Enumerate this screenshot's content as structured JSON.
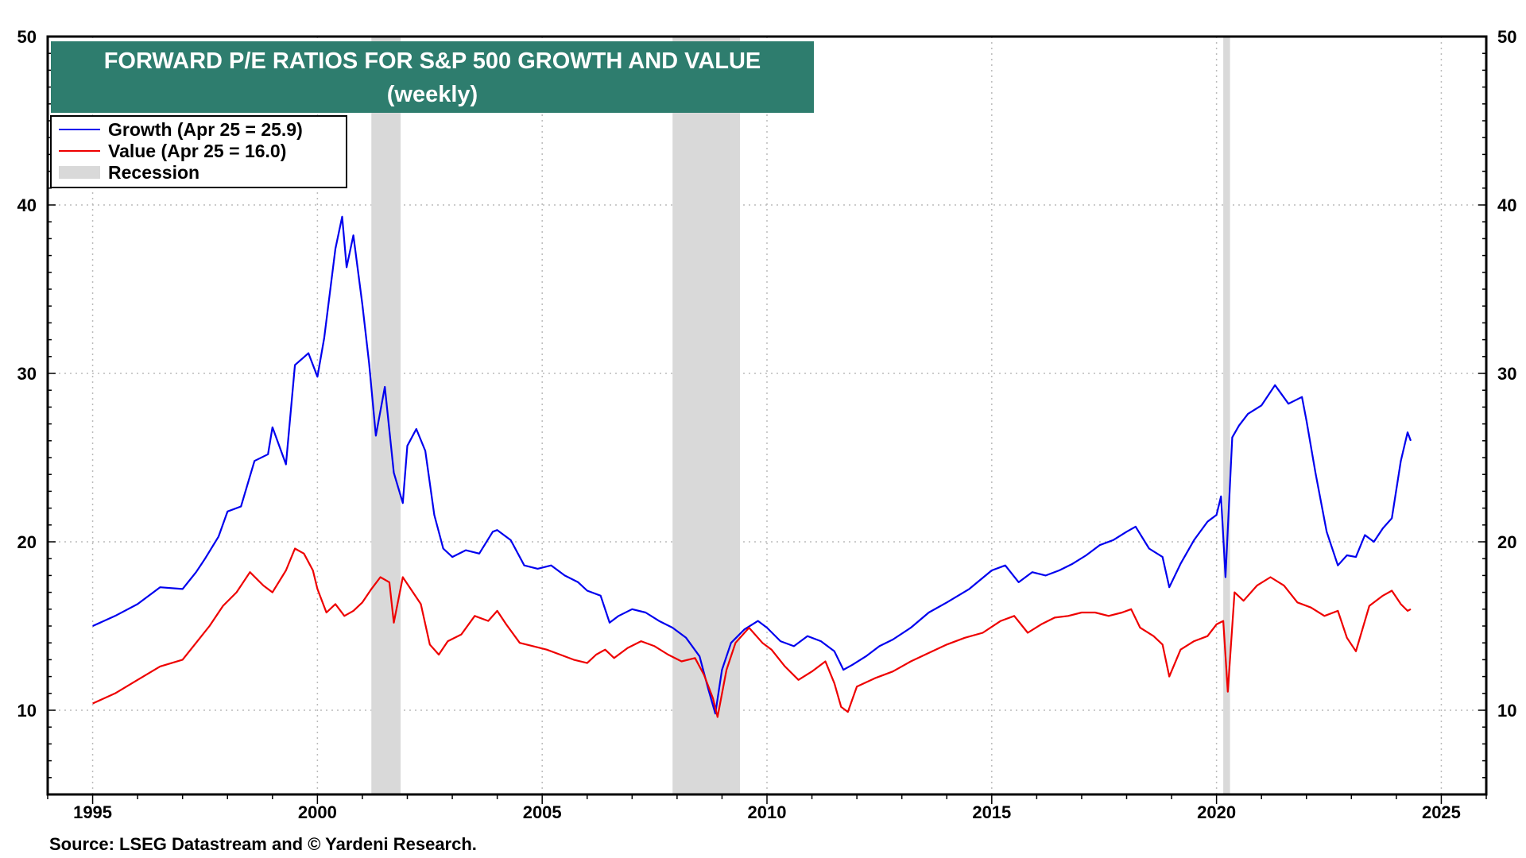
{
  "chart_data": {
    "type": "line",
    "title": "FORWARD P/E RATIOS FOR S&P 500 GROWTH AND VALUE",
    "subtitle": "(weekly)",
    "source": "Source: LSEG Datastream and © Yardeni Research.",
    "xlim": [
      1994.0,
      2026.0
    ],
    "ylim": [
      5,
      50
    ],
    "x_ticks": [
      1995,
      2000,
      2005,
      2010,
      2015,
      2020,
      2025
    ],
    "y_ticks": [
      10,
      20,
      30,
      40,
      50
    ],
    "grid": true,
    "legend_position": "top-left",
    "legend": [
      {
        "label": "Growth (Apr 25 = 25.9)",
        "color": "#0000ee",
        "kind": "line"
      },
      {
        "label": "Value (Apr 25 = 16.0)",
        "color": "#ee0000",
        "kind": "line"
      },
      {
        "label": "Recession",
        "color": "#d9d9d9",
        "kind": "patch"
      }
    ],
    "recessions": [
      [
        2001.2,
        2001.85
      ],
      [
        2007.9,
        2009.4
      ],
      [
        2020.15,
        2020.3
      ]
    ],
    "series": [
      {
        "name": "Growth (Apr 25 = 25.9)",
        "color": "#0000ee",
        "x": [
          1995.0,
          1995.5,
          1996.0,
          1996.5,
          1997.0,
          1997.3,
          1997.5,
          1997.8,
          1998.0,
          1998.3,
          1998.6,
          1998.9,
          1999.0,
          1999.3,
          1999.5,
          1999.8,
          2000.0,
          2000.15,
          2000.4,
          2000.55,
          2000.65,
          2000.8,
          2001.0,
          2001.15,
          2001.3,
          2001.5,
          2001.7,
          2001.9,
          2002.0,
          2002.2,
          2002.4,
          2002.6,
          2002.8,
          2003.0,
          2003.3,
          2003.6,
          2003.9,
          2004.0,
          2004.3,
          2004.6,
          2004.9,
          2005.2,
          2005.5,
          2005.8,
          2006.0,
          2006.3,
          2006.5,
          2006.7,
          2007.0,
          2007.3,
          2007.6,
          2007.9,
          2008.2,
          2008.5,
          2008.7,
          2008.85,
          2009.0,
          2009.2,
          2009.5,
          2009.8,
          2010.0,
          2010.3,
          2010.6,
          2010.9,
          2011.2,
          2011.5,
          2011.7,
          2011.9,
          2012.2,
          2012.5,
          2012.8,
          2013.2,
          2013.6,
          2014.0,
          2014.5,
          2015.0,
          2015.3,
          2015.6,
          2015.9,
          2016.2,
          2016.5,
          2016.8,
          2017.1,
          2017.4,
          2017.7,
          2018.0,
          2018.2,
          2018.5,
          2018.8,
          2018.95,
          2019.2,
          2019.5,
          2019.8,
          2020.0,
          2020.1,
          2020.2,
          2020.35,
          2020.5,
          2020.7,
          2021.0,
          2021.3,
          2021.6,
          2021.9,
          2022.0,
          2022.2,
          2022.45,
          2022.7,
          2022.9,
          2023.1,
          2023.3,
          2023.5,
          2023.7,
          2023.9,
          2024.1,
          2024.25,
          2024.32
        ],
        "y": [
          15.0,
          15.6,
          16.3,
          17.3,
          17.2,
          18.2,
          19.0,
          20.3,
          21.8,
          22.1,
          24.8,
          25.2,
          26.8,
          24.6,
          30.5,
          31.2,
          29.8,
          32.1,
          37.4,
          39.3,
          36.3,
          38.2,
          34.1,
          30.6,
          26.3,
          29.2,
          24.1,
          22.3,
          25.7,
          26.7,
          25.4,
          21.6,
          19.6,
          19.1,
          19.5,
          19.3,
          20.6,
          20.7,
          20.1,
          18.6,
          18.4,
          18.6,
          18.0,
          17.6,
          17.1,
          16.8,
          15.2,
          15.6,
          16.0,
          15.8,
          15.3,
          14.9,
          14.3,
          13.2,
          11.2,
          9.8,
          12.4,
          14.0,
          14.8,
          15.3,
          14.9,
          14.1,
          13.8,
          14.4,
          14.1,
          13.5,
          12.4,
          12.7,
          13.2,
          13.8,
          14.2,
          14.9,
          15.8,
          16.4,
          17.2,
          18.3,
          18.6,
          17.6,
          18.2,
          18.0,
          18.3,
          18.7,
          19.2,
          19.8,
          20.1,
          20.6,
          20.9,
          19.6,
          19.1,
          17.3,
          18.7,
          20.1,
          21.2,
          21.6,
          22.7,
          17.9,
          26.2,
          26.9,
          27.6,
          28.1,
          29.3,
          28.2,
          28.6,
          27.2,
          24.1,
          20.6,
          18.6,
          19.2,
          19.1,
          20.4,
          20.0,
          20.8,
          21.4,
          24.8,
          26.5,
          26.0
        ]
      },
      {
        "name": "Value (Apr 25 = 16.0)",
        "color": "#ee0000",
        "x": [
          1995.0,
          1995.5,
          1996.0,
          1996.5,
          1997.0,
          1997.3,
          1997.6,
          1997.9,
          1998.2,
          1998.5,
          1998.8,
          1999.0,
          1999.3,
          1999.5,
          1999.7,
          1999.9,
          2000.0,
          2000.2,
          2000.4,
          2000.6,
          2000.8,
          2001.0,
          2001.2,
          2001.4,
          2001.6,
          2001.7,
          2001.9,
          2002.1,
          2002.3,
          2002.5,
          2002.7,
          2002.9,
          2003.2,
          2003.5,
          2003.8,
          2004.0,
          2004.2,
          2004.5,
          2004.8,
          2005.1,
          2005.4,
          2005.7,
          2006.0,
          2006.2,
          2006.4,
          2006.6,
          2006.9,
          2007.2,
          2007.5,
          2007.8,
          2008.1,
          2008.4,
          2008.6,
          2008.8,
          2008.9,
          2009.1,
          2009.3,
          2009.6,
          2009.9,
          2010.1,
          2010.4,
          2010.7,
          2011.0,
          2011.3,
          2011.5,
          2011.65,
          2011.8,
          2012.0,
          2012.4,
          2012.8,
          2013.2,
          2013.6,
          2014.0,
          2014.4,
          2014.8,
          2015.2,
          2015.5,
          2015.8,
          2016.1,
          2016.4,
          2016.7,
          2017.0,
          2017.3,
          2017.6,
          2017.9,
          2018.1,
          2018.3,
          2018.6,
          2018.8,
          2018.95,
          2019.2,
          2019.5,
          2019.8,
          2020.0,
          2020.15,
          2020.25,
          2020.4,
          2020.6,
          2020.9,
          2021.2,
          2021.5,
          2021.8,
          2022.1,
          2022.4,
          2022.7,
          2022.9,
          2023.1,
          2023.4,
          2023.7,
          2023.9,
          2024.1,
          2024.25,
          2024.32
        ],
        "y": [
          10.4,
          11.0,
          11.8,
          12.6,
          13.0,
          14.0,
          15.0,
          16.2,
          17.0,
          18.2,
          17.4,
          17.0,
          18.3,
          19.6,
          19.3,
          18.3,
          17.2,
          15.8,
          16.3,
          15.6,
          15.9,
          16.4,
          17.2,
          17.9,
          17.6,
          15.2,
          17.9,
          17.1,
          16.3,
          13.9,
          13.3,
          14.1,
          14.5,
          15.6,
          15.3,
          15.9,
          15.1,
          14.0,
          13.8,
          13.6,
          13.3,
          13.0,
          12.8,
          13.3,
          13.6,
          13.1,
          13.7,
          14.1,
          13.8,
          13.3,
          12.9,
          13.1,
          12.1,
          10.7,
          9.6,
          12.4,
          14.0,
          14.9,
          14.0,
          13.6,
          12.6,
          11.8,
          12.3,
          12.9,
          11.6,
          10.2,
          9.9,
          11.4,
          11.9,
          12.3,
          12.9,
          13.4,
          13.9,
          14.3,
          14.6,
          15.3,
          15.6,
          14.6,
          15.1,
          15.5,
          15.6,
          15.8,
          15.8,
          15.6,
          15.8,
          16.0,
          14.9,
          14.4,
          13.9,
          12.0,
          13.6,
          14.1,
          14.4,
          15.1,
          15.3,
          11.1,
          17.0,
          16.5,
          17.4,
          17.9,
          17.4,
          16.4,
          16.1,
          15.6,
          15.9,
          14.3,
          13.5,
          16.2,
          16.8,
          17.1,
          16.3,
          15.9,
          16.0
        ]
      }
    ]
  }
}
